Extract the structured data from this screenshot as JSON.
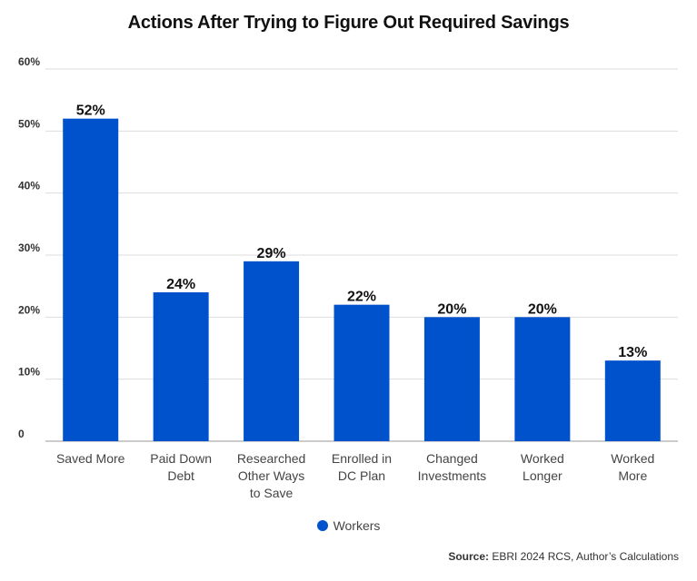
{
  "chart_data": {
    "type": "bar",
    "title": "Actions After Trying to Figure Out Required Savings",
    "xlabel": "",
    "ylabel": "",
    "ylim": [
      0,
      60
    ],
    "yticks": [
      0,
      10,
      20,
      30,
      40,
      50,
      60
    ],
    "ytick_labels": [
      "0",
      "10%",
      "20%",
      "30%",
      "40%",
      "50%",
      "60%"
    ],
    "categories": [
      [
        "Saved More"
      ],
      [
        "Paid Down",
        "Debt"
      ],
      [
        "Researched",
        "Other Ways",
        "to Save"
      ],
      [
        "Enrolled in",
        "DC Plan"
      ],
      [
        "Changed",
        "Investments"
      ],
      [
        "Worked",
        "Longer"
      ],
      [
        "Worked",
        "More"
      ]
    ],
    "series": [
      {
        "name": "Workers",
        "values": [
          52,
          24,
          29,
          22,
          20,
          20,
          13
        ],
        "color": "#0052cc"
      }
    ],
    "data_labels": [
      "52%",
      "24%",
      "29%",
      "22%",
      "20%",
      "20%",
      "13%"
    ],
    "grid": true,
    "legend_position": "bottom"
  },
  "source": {
    "label": "Source:",
    "text": " EBRI 2024 RCS, Author’s Calculations"
  }
}
